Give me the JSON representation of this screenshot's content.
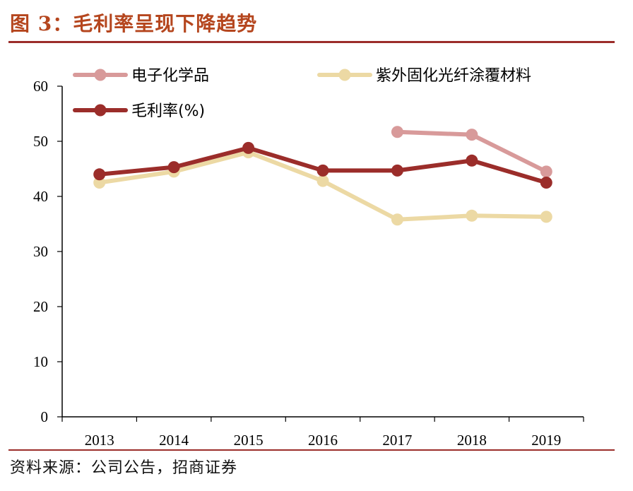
{
  "title": "图 3：毛利率呈现下降趋势",
  "source": "资料来源：公司公告，招商证券",
  "chart_data": {
    "type": "line",
    "title": "图 3：毛利率呈现下降趋势",
    "xlabel": "",
    "ylabel": "",
    "categories": [
      "2013",
      "2014",
      "2015",
      "2016",
      "2017",
      "2018",
      "2019"
    ],
    "ylim": [
      0,
      60
    ],
    "yticks": [
      0,
      10,
      20,
      30,
      40,
      50,
      60
    ],
    "grid": false,
    "series": [
      {
        "name": "电子化学品",
        "color": "#d89a9a",
        "values": [
          null,
          null,
          null,
          null,
          51.7,
          51.2,
          44.5
        ]
      },
      {
        "name": "紫外固化光纤涂覆材料",
        "color": "#ecd9a4",
        "values": [
          42.5,
          44.5,
          48.0,
          42.8,
          35.8,
          36.5,
          36.3
        ]
      },
      {
        "name": "毛利率(%)",
        "color": "#9b2d2a",
        "values": [
          44.0,
          45.3,
          48.8,
          44.7,
          44.7,
          46.5,
          42.5
        ]
      }
    ]
  }
}
